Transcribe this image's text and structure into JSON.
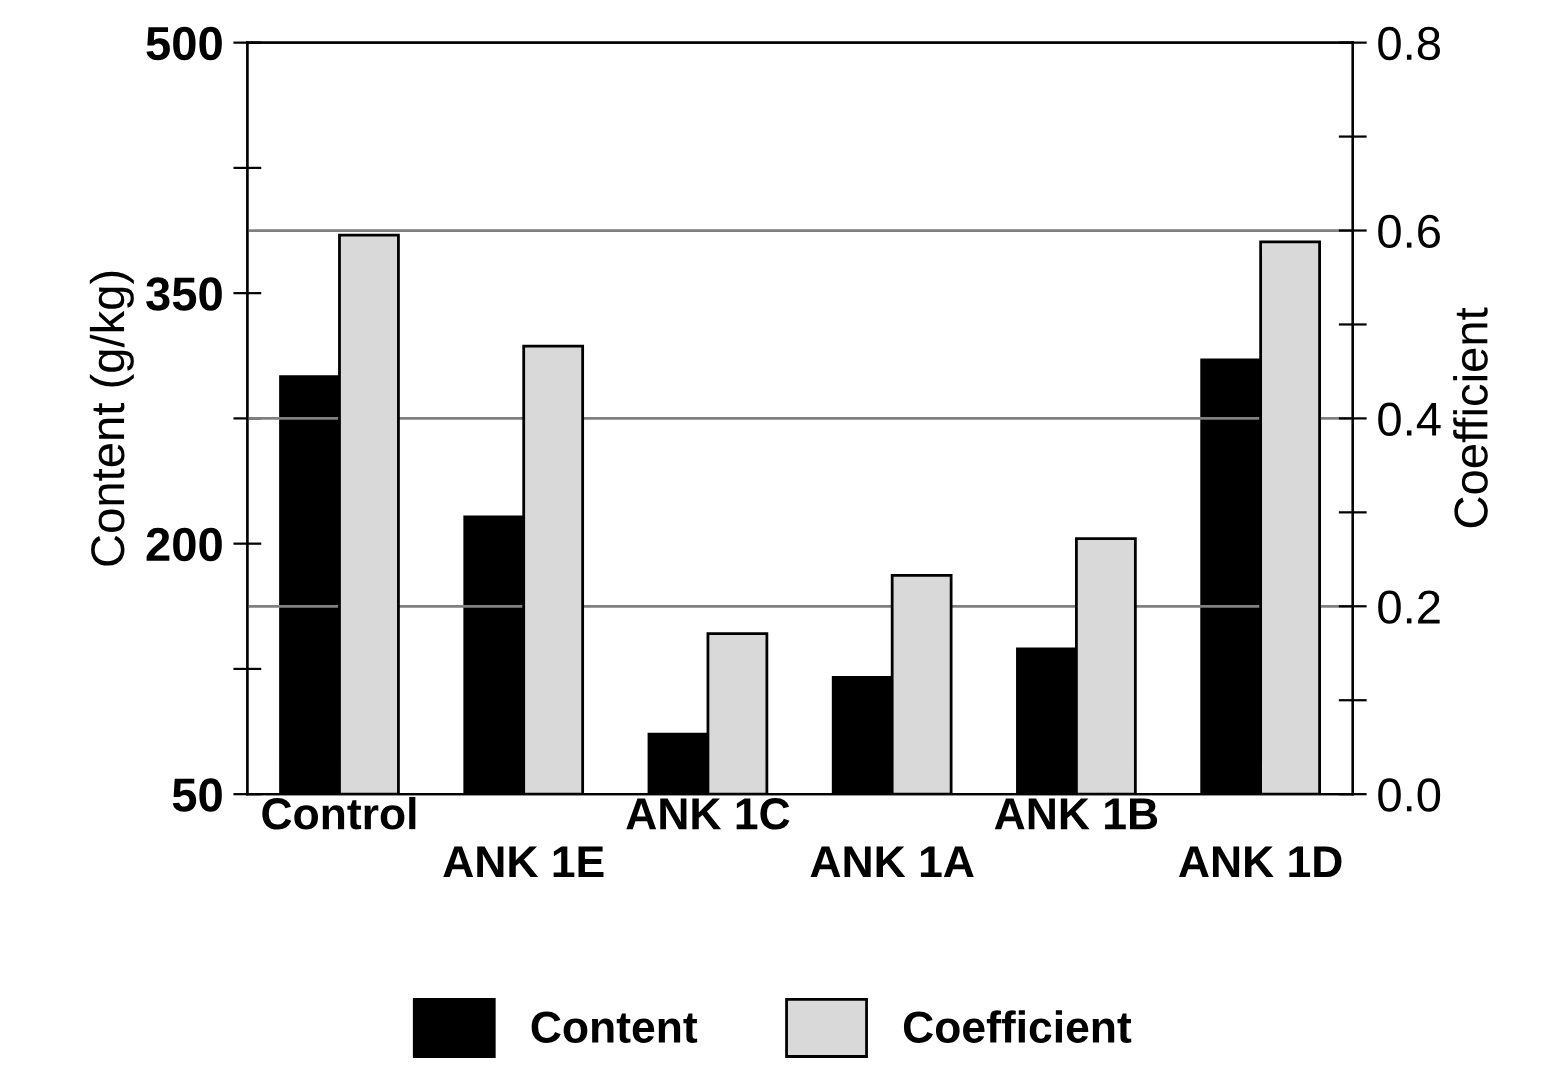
{
  "chart_data": {
    "type": "bar",
    "ylabel": "Content (g/kg)",
    "y2label": "Coefficient",
    "categories": [
      "Control",
      "ANK 1E",
      "ANK 1C",
      "ANK 1A",
      "ANK 1B",
      "ANK 1D"
    ],
    "series": [
      {
        "name": "Content",
        "color": "#000000",
        "values": [
          300,
          216,
          86,
          120,
          137,
          310
        ]
      },
      {
        "name": "Coefficient",
        "color": "#d9d9d9",
        "axis": "y2",
        "values": [
          0.595,
          0.477,
          0.171,
          0.233,
          0.272,
          0.588
        ]
      }
    ],
    "ylim": [
      50,
      500
    ],
    "yticks": [
      50,
      {
        "value": 125,
        "label": null
      },
      200,
      {
        "value": 275,
        "label": null
      },
      350,
      {
        "value": 425,
        "label": null
      },
      500
    ],
    "y2lim": [
      0,
      0.8
    ],
    "y2ticks": [
      {
        "value": 0,
        "label": "0.0"
      },
      {
        "value": 0.1,
        "label": null
      },
      0.2,
      {
        "value": 0.3,
        "label": null
      },
      0.4,
      {
        "value": 0.5,
        "label": null
      },
      0.6,
      {
        "value": 0.7,
        "label": null
      },
      0.8
    ],
    "grid": "y",
    "legend": "bottom"
  }
}
